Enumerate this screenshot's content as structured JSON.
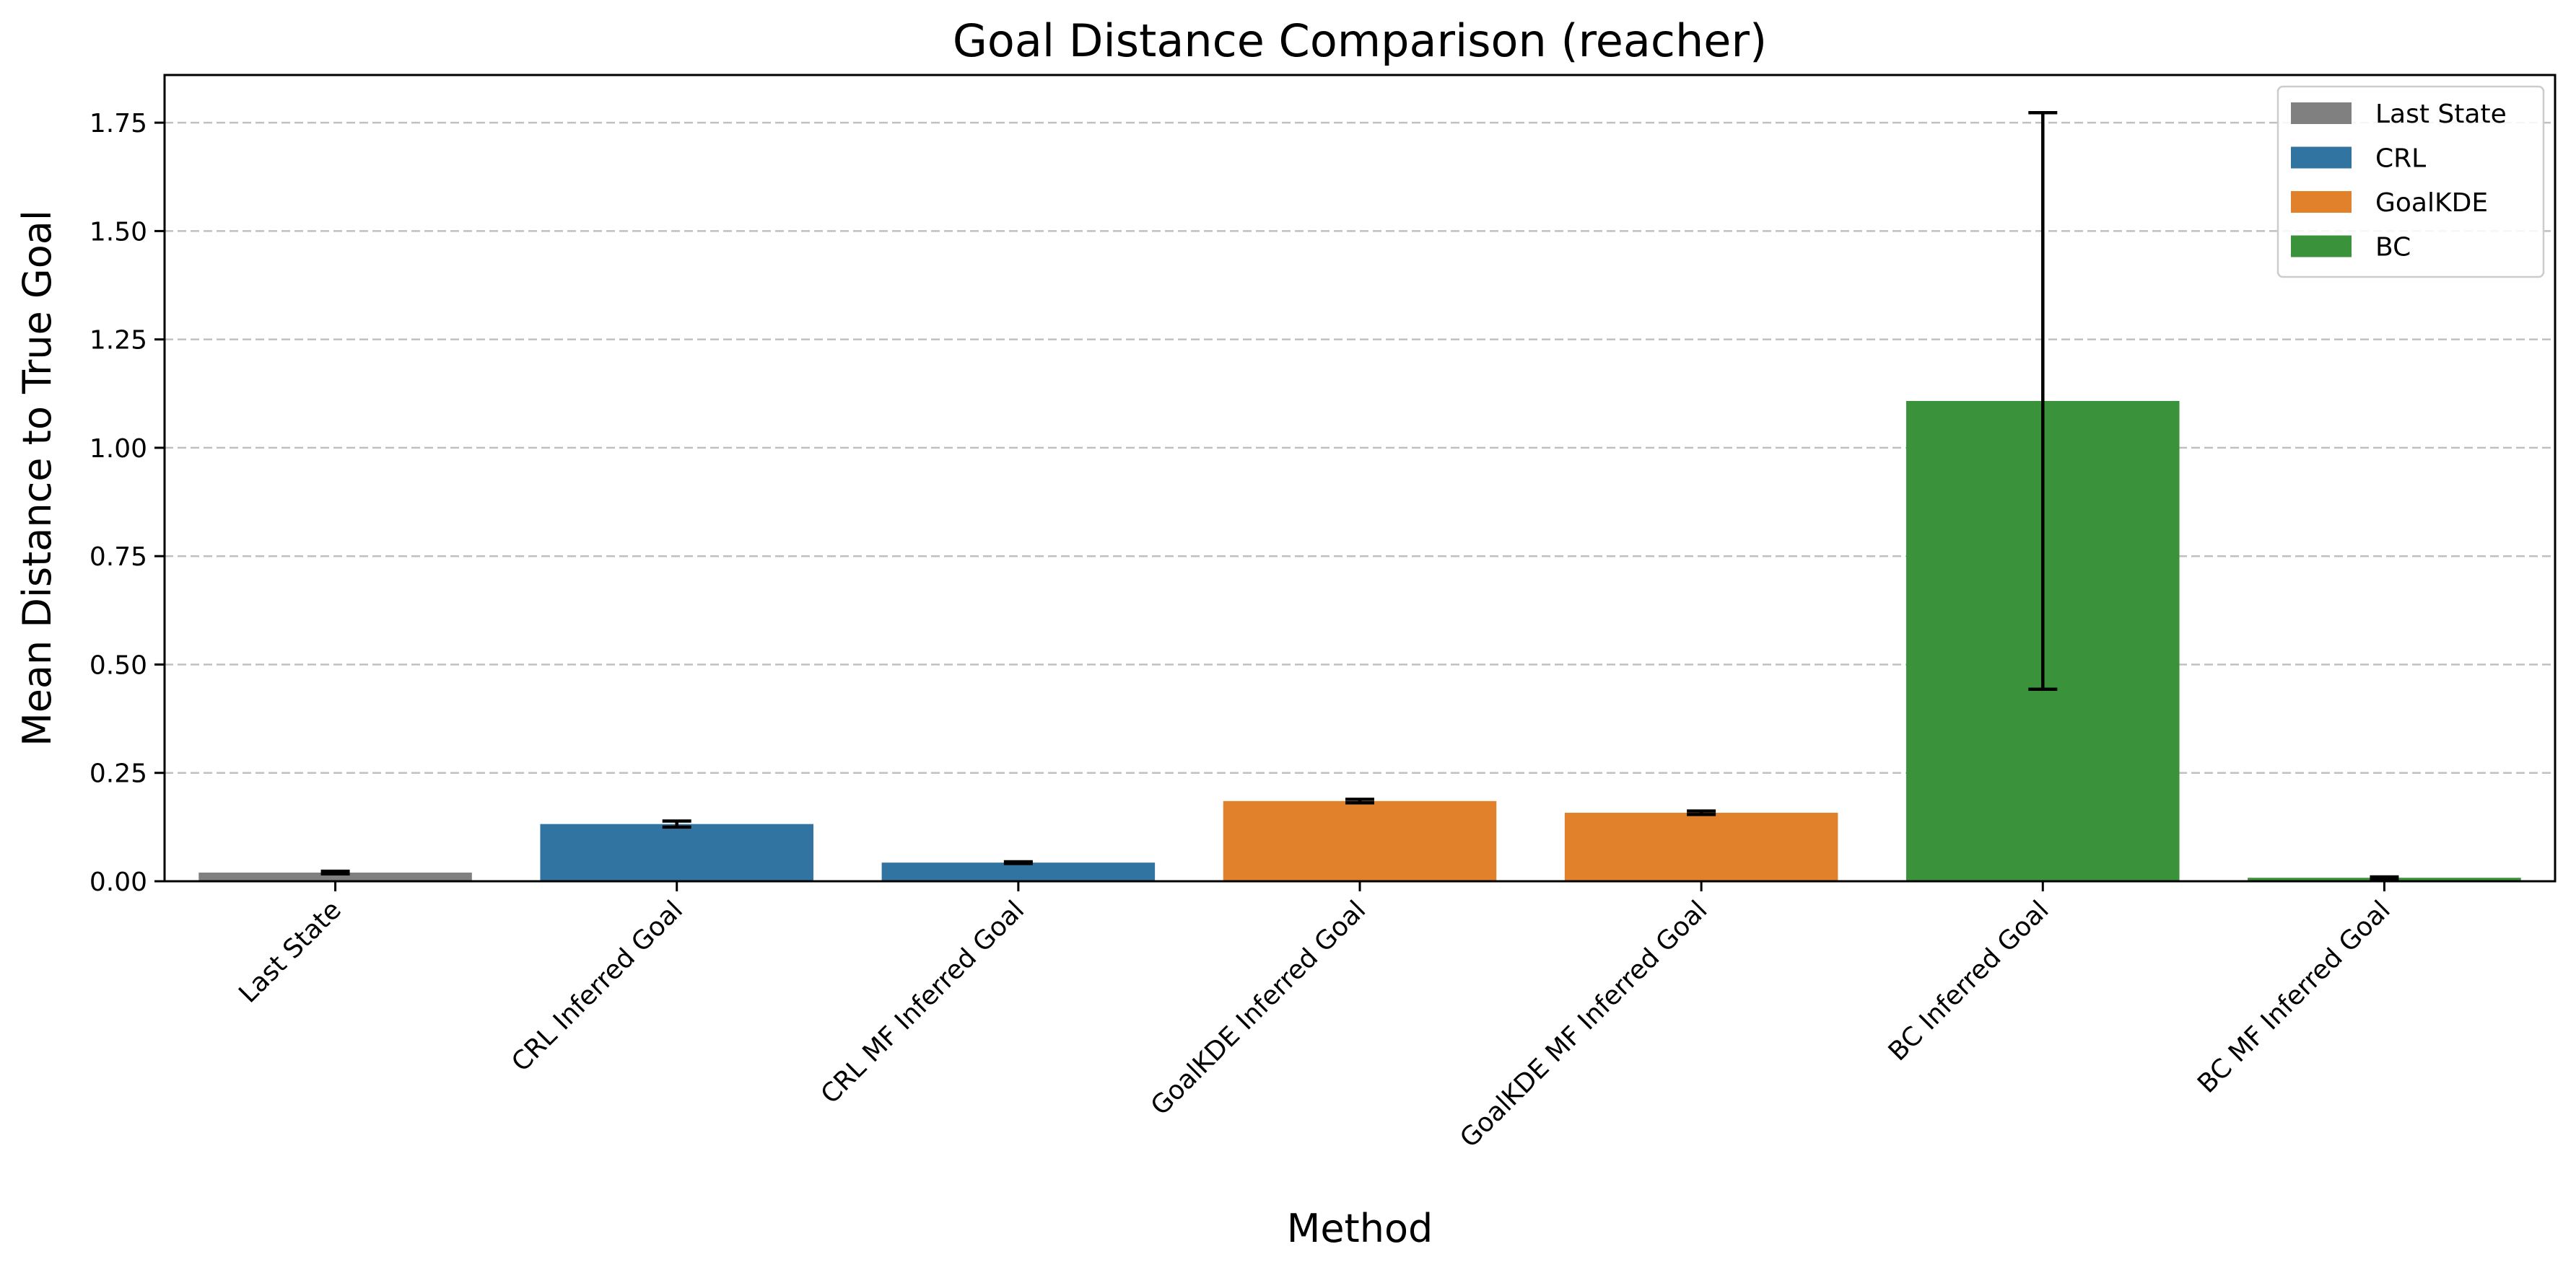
{
  "chart_data": {
    "type": "bar",
    "title": "Goal Distance Comparison (reacher)",
    "xlabel": "Method",
    "ylabel": "Mean Distance to True Goal",
    "ylim": [
      0,
      1.86
    ],
    "y_ticks": [
      0.0,
      0.25,
      0.5,
      0.75,
      1.0,
      1.25,
      1.5,
      1.75
    ],
    "y_tick_labels": [
      "0.00",
      "0.25",
      "0.50",
      "0.75",
      "1.00",
      "1.25",
      "1.50",
      "1.75"
    ],
    "grid": "y-dashed",
    "legend_position": "top-right",
    "categories": [
      "Last State",
      "CRL Inferred Goal",
      "CRL MF Inferred Goal",
      "GoalKDE Inferred Goal",
      "GoalKDE MF Inferred Goal",
      "BC Inferred Goal",
      "BC MF Inferred Goal"
    ],
    "values": [
      0.02,
      0.132,
      0.043,
      0.185,
      0.158,
      1.108,
      0.008
    ],
    "errors": [
      0.003,
      0.007,
      0.002,
      0.004,
      0.004,
      0.665,
      0.002
    ],
    "bar_groups": [
      "Last State",
      "CRL",
      "CRL",
      "GoalKDE",
      "GoalKDE",
      "BC",
      "BC"
    ],
    "legend": [
      {
        "name": "Last State",
        "color": "#808080"
      },
      {
        "name": "CRL",
        "color": "#3274a1"
      },
      {
        "name": "GoalKDE",
        "color": "#e1812c"
      },
      {
        "name": "BC",
        "color": "#3a923a"
      }
    ]
  }
}
